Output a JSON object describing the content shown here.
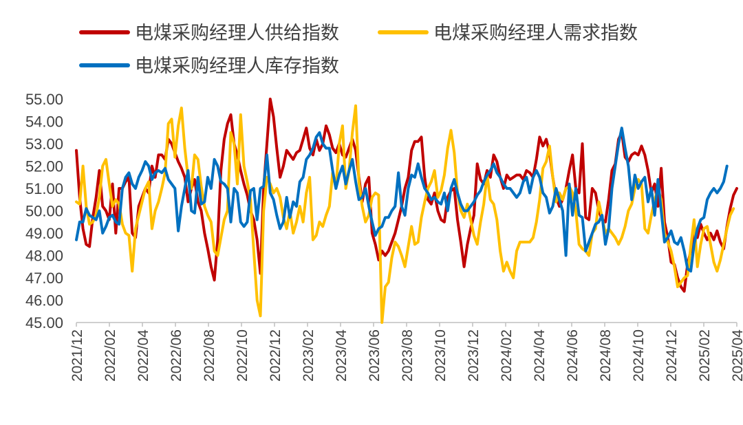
{
  "colors": {
    "supply": "#C00000",
    "demand": "#FFC000",
    "inventory": "#0070C0",
    "axis": "#BFBFBF",
    "text": "#404040"
  },
  "chart_data": {
    "type": "line",
    "title": "",
    "xlabel": "",
    "ylabel": "",
    "ylim": [
      45,
      55
    ],
    "grid": false,
    "legend": "top",
    "y_ticks": [
      "45.00",
      "46.00",
      "47.00",
      "48.00",
      "49.00",
      "50.00",
      "51.00",
      "52.00",
      "53.00",
      "54.00",
      "55.00"
    ],
    "x_ticks": [
      "2021/12",
      "2022/02",
      "2022/04",
      "2022/06",
      "2022/08",
      "2022/10",
      "2022/12",
      "2023/02",
      "2023/04",
      "2023/06",
      "2023/08",
      "2023/10",
      "2023/12",
      "2024/02",
      "2024/04",
      "2024/06",
      "2024/08",
      "2024/10",
      "2024/12",
      "2025/02",
      "2025/04"
    ],
    "x_period": "weekly observations",
    "series": [
      {
        "name": "电煤采购经理人供给指数",
        "key": "supply",
        "values": [
          52.7,
          50.6,
          49.2,
          48.5,
          48.4,
          49.7,
          50.6,
          51.8,
          50.2,
          50.0,
          49.6,
          51.2,
          49.0,
          51.0,
          51.0,
          51.3,
          51.5,
          49.0,
          48.8,
          50.2,
          50.6,
          51.0,
          50.8,
          52.0,
          51.5,
          52.5,
          52.5,
          52.3,
          53.2,
          53.0,
          52.6,
          52.2,
          51.9,
          51.5,
          50.4,
          51.0,
          51.4,
          50.4,
          50.0,
          49.0,
          48.3,
          47.5,
          46.9,
          48.7,
          51.8,
          53.2,
          53.9,
          54.3,
          53.0,
          52.5,
          51.8,
          51.2,
          50.7,
          50.0,
          49.6,
          48.7,
          47.2,
          51.0,
          53.0,
          55.0,
          54.2,
          52.8,
          51.5,
          52.0,
          52.7,
          52.5,
          52.3,
          52.6,
          52.7,
          53.2,
          53.7,
          52.8,
          52.5,
          53.2,
          52.7,
          53.0,
          53.8,
          53.4,
          52.8,
          52.6,
          53.0,
          52.5,
          52.4,
          52.8,
          53.2,
          52.7,
          51.5,
          50.4,
          51.2,
          51.5,
          49.0,
          48.5,
          47.8,
          48.2,
          48.0,
          48.2,
          48.6,
          49.0,
          49.6,
          50.2,
          51.0,
          51.5,
          52.7,
          53.1,
          53.1,
          53.3,
          51.5,
          50.5,
          50.3,
          50.8,
          50.0,
          49.6,
          49.5,
          50.6,
          50.9,
          51.0,
          49.6,
          48.6,
          47.5,
          48.5,
          49.2,
          49.8,
          52.1,
          51.4,
          51.2,
          51.8,
          51.5,
          52.5,
          52.2,
          51.5,
          51.0,
          51.6,
          51.4,
          51.5,
          51.6,
          51.6,
          51.4,
          51.8,
          51.7,
          51.5,
          52.3,
          53.3,
          52.9,
          53.2,
          52.6,
          51.5,
          50.6,
          50.2,
          50.5,
          51.0,
          51.8,
          52.5,
          51.0,
          50.8,
          53.0,
          49.7,
          49.6,
          51.0,
          50.8,
          50.0,
          49.6,
          49.5,
          50.5,
          51.8,
          52.1,
          53.2,
          53.5,
          52.4,
          52.2,
          52.5,
          52.6,
          52.5,
          52.9,
          52.5,
          51.8,
          50.8,
          51.2,
          50.2,
          51.9,
          49.5,
          48.8,
          47.7,
          47.6,
          47.0,
          46.6,
          46.4,
          47.6,
          48.2,
          49.0,
          48.8,
          49.4,
          49.0,
          48.7,
          49.0,
          48.7,
          49.1,
          48.6,
          48.3,
          49.3,
          50.1,
          50.7,
          51.0
        ]
      },
      {
        "name": "电煤采购经理人需求指数",
        "key": "demand",
        "values": [
          50.4,
          50.3,
          52.0,
          50.2,
          49.4,
          49.5,
          49.8,
          50.6,
          52.0,
          52.3,
          51.2,
          50.2,
          50.5,
          50.3,
          49.4,
          49.0,
          48.9,
          47.3,
          49.2,
          49.8,
          50.4,
          51.0,
          51.3,
          49.2,
          50.0,
          50.4,
          51.0,
          51.7,
          53.9,
          54.1,
          52.4,
          53.8,
          54.6,
          52.8,
          51.5,
          51.0,
          52.5,
          52.3,
          51.1,
          50.2,
          49.8,
          49.5,
          48.2,
          48.0,
          48.8,
          49.6,
          50.0,
          53.5,
          53.0,
          51.2,
          54.3,
          52.0,
          51.3,
          50.5,
          48.2,
          46.0,
          45.3,
          50.0,
          51.5,
          51.2,
          50.8,
          51.0,
          50.6,
          49.7,
          49.2,
          50.0,
          49.0,
          49.5,
          50.2,
          49.5,
          50.8,
          51.5,
          48.7,
          48.9,
          49.5,
          49.3,
          49.8,
          50.2,
          51.7,
          51.0,
          53.0,
          53.8,
          51.0,
          51.8,
          53.5,
          54.7,
          51.3,
          50.2,
          49.5,
          49.8,
          50.6,
          50.8,
          50.7,
          45.0,
          46.6,
          46.8,
          47.9,
          48.6,
          48.4,
          48.0,
          47.5,
          48.4,
          49.3,
          48.5,
          48.6,
          49.7,
          50.4,
          51.0,
          51.3,
          51.8,
          50.6,
          50.9,
          51.6,
          52.8,
          53.6,
          52.6,
          50.8,
          50.0,
          49.7,
          50.3,
          49.6,
          48.9,
          48.5,
          49.5,
          50.3,
          51.6,
          50.5,
          50.3,
          49.6,
          48.2,
          47.3,
          47.7,
          47.3,
          47.0,
          48.2,
          48.6,
          48.6,
          48.6,
          48.6,
          48.8,
          49.5,
          50.5,
          51.9,
          52.2,
          52.9,
          51.5,
          50.4,
          50.8,
          50.5,
          51.0,
          51.1,
          50.8,
          50.0,
          48.5,
          48.3,
          48.2,
          48.0,
          49.0,
          49.2,
          50.4,
          49.7,
          49.0,
          49.2,
          49.0,
          48.8,
          48.5,
          48.8,
          49.3,
          50.0,
          50.3,
          51.0,
          51.4,
          51.2,
          49.2,
          49.0,
          49.8,
          50.5,
          51.0,
          50.5,
          49.0,
          48.6,
          48.2,
          47.5,
          46.6,
          46.8,
          47.0,
          47.1,
          48.4,
          49.6,
          47.5,
          48.5,
          49.2,
          49.3,
          48.5,
          47.7,
          47.3,
          47.8,
          48.5,
          49.2,
          49.8,
          50.1
        ]
      },
      {
        "name": "电煤采购经理人库存指数",
        "key": "inventory",
        "values": [
          48.7,
          49.5,
          49.5,
          50.1,
          49.8,
          49.7,
          49.6,
          50.0,
          49.0,
          49.3,
          49.7,
          49.8,
          49.5,
          49.4,
          51.0,
          51.5,
          51.7,
          51.2,
          51.0,
          51.5,
          51.8,
          52.2,
          52.0,
          51.4,
          51.7,
          51.8,
          51.7,
          51.9,
          51.4,
          51.2,
          51.0,
          49.1,
          50.2,
          51.0,
          51.8,
          50.0,
          49.9,
          51.5,
          50.3,
          50.4,
          51.5,
          51.0,
          52.3,
          52.0,
          51.3,
          51.2,
          51.0,
          49.5,
          51.0,
          50.8,
          49.5,
          49.3,
          49.5,
          50.9,
          51.0,
          49.6,
          51.0,
          51.1,
          52.5,
          50.8,
          50.5,
          49.8,
          49.2,
          49.5,
          50.6,
          49.7,
          50.4,
          50.2,
          51.3,
          51.5,
          52.3,
          52.5,
          52.8,
          53.3,
          53.5,
          53.0,
          52.8,
          52.8,
          51.8,
          51.0,
          51.6,
          52.0,
          51.2,
          51.8,
          52.3,
          51.3,
          50.5,
          50.6,
          51.0,
          50.2,
          49.5,
          48.9,
          49.2,
          49.3,
          49.7,
          49.7,
          50.0,
          50.2,
          51.7,
          50.2,
          49.8,
          51.0,
          51.6,
          51.5,
          52.1,
          51.5,
          51.0,
          50.8,
          50.5,
          50.6,
          50.4,
          50.3,
          50.8,
          50.0,
          51.0,
          51.4,
          50.8,
          50.3,
          50.0,
          50.0,
          50.2,
          50.4,
          50.7,
          50.9,
          51.3,
          51.6,
          51.8,
          52.1,
          51.7,
          51.5,
          51.2,
          51.0,
          51.0,
          50.8,
          50.6,
          50.8,
          51.3,
          51.5,
          50.8,
          51.5,
          51.8,
          51.5,
          50.8,
          50.6,
          49.9,
          50.2,
          51.0,
          50.5,
          50.0,
          48.0,
          51.2,
          49.8,
          51.0,
          49.8,
          49.7,
          48.2,
          48.6,
          49.0,
          49.4,
          49.5,
          49.8,
          48.5,
          49.2,
          51.0,
          52.0,
          53.0,
          53.7,
          52.8,
          52.0,
          50.5,
          51.6,
          51.0,
          51.3,
          51.5,
          50.4,
          51.0,
          49.8,
          51.4,
          50.0,
          48.6,
          48.8,
          49.1,
          48.6,
          48.5,
          48.8,
          48.2,
          47.4,
          47.3,
          48.5,
          49.2,
          49.6,
          49.7,
          50.5,
          50.8,
          51.0,
          50.8,
          51.0,
          51.3,
          52.0
        ]
      }
    ]
  }
}
